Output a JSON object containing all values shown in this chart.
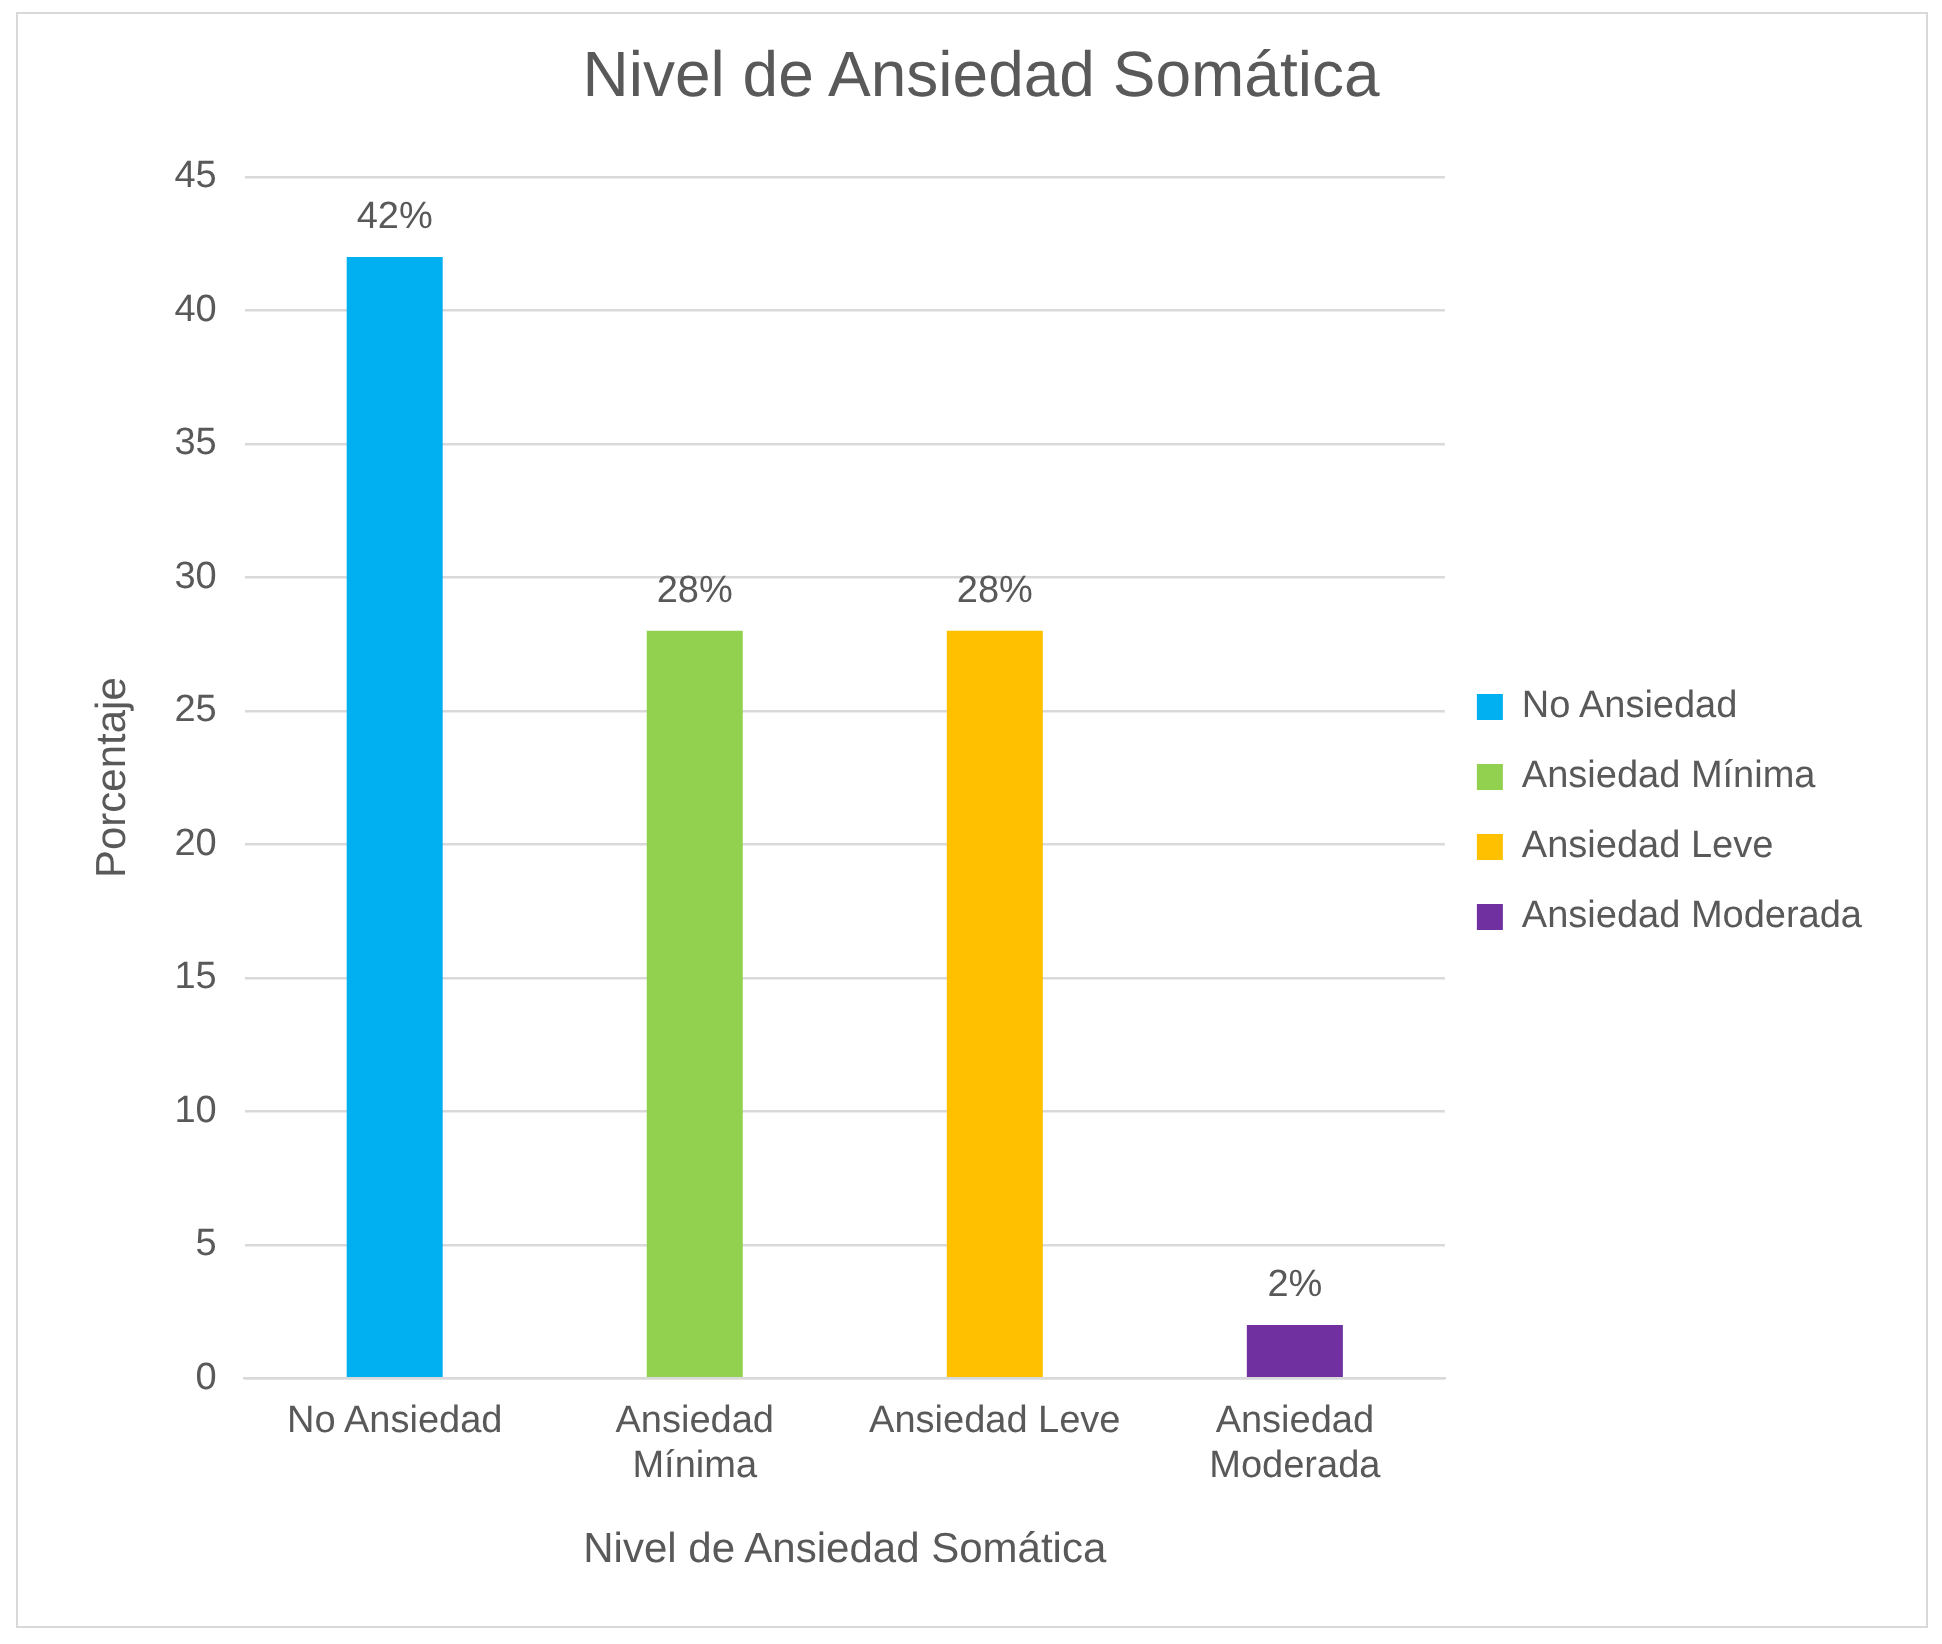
{
  "chart_data": {
    "type": "bar",
    "title": "Nivel de Ansiedad Somática",
    "xlabel": "Nivel de Ansiedad Somática",
    "ylabel": "Porcentaje",
    "categories": [
      "No Ansiedad",
      "Ansiedad Mínima",
      "Ansiedad Leve",
      "Ansiedad Moderada"
    ],
    "series": [
      {
        "name": "No Ansiedad",
        "color": "#00b0f0",
        "values": [
          42,
          null,
          null,
          null
        ],
        "value_labels": [
          "42%",
          null,
          null,
          null
        ]
      },
      {
        "name": "Ansiedad Mínima",
        "color": "#92d050",
        "values": [
          null,
          28,
          null,
          null
        ],
        "value_labels": [
          null,
          "28%",
          null,
          null
        ]
      },
      {
        "name": "Ansiedad Leve",
        "color": "#ffc000",
        "values": [
          null,
          null,
          28,
          null
        ],
        "value_labels": [
          null,
          null,
          "28%",
          null
        ]
      },
      {
        "name": "Ansiedad Moderada",
        "color": "#7030a0",
        "values": [
          null,
          null,
          null,
          2
        ],
        "value_labels": [
          null,
          null,
          null,
          "2%"
        ]
      }
    ],
    "ylim": [
      0,
      45
    ],
    "yticks": [
      0,
      5,
      10,
      15,
      20,
      25,
      30,
      35,
      40,
      45
    ],
    "grid": "y",
    "legend": "right"
  }
}
